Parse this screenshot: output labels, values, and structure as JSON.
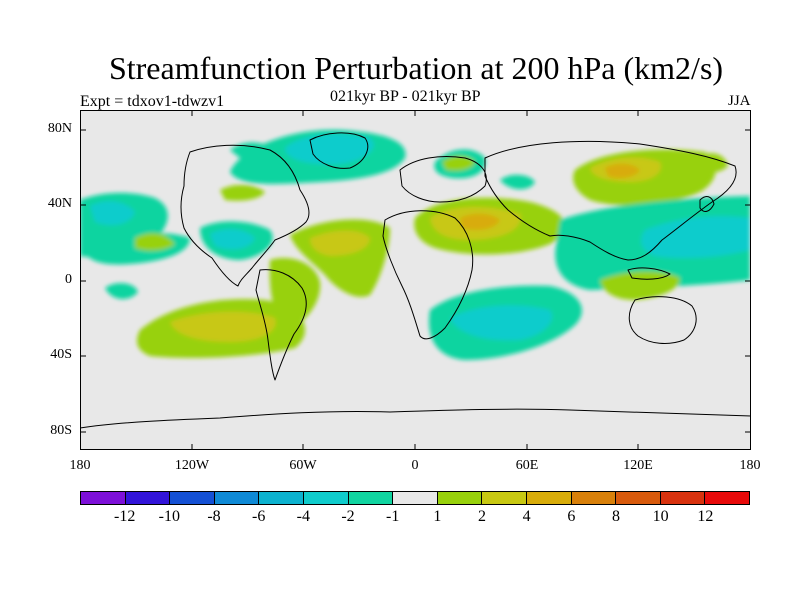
{
  "title": "Streamfunction Perturbation at 200 hPa (km2/s)",
  "subtitle_left": "Expt = tdxov1-tdwzv1",
  "subtitle_center": "021kyr BP - 021kyr BP",
  "subtitle_right": "JJA",
  "lat_labels": [
    "80N",
    "40N",
    "0",
    "40S",
    "80S"
  ],
  "lon_labels": [
    "180",
    "120W",
    "60W",
    "0",
    "60E",
    "120E",
    "180"
  ],
  "colorbar": {
    "labels": [
      "-12",
      "-10",
      "-8",
      "-6",
      "-4",
      "-2",
      "-1",
      "1",
      "2",
      "4",
      "6",
      "8",
      "10",
      "12"
    ],
    "colors": [
      "#7d10d8",
      "#3214d9",
      "#1450d4",
      "#0f8ad6",
      "#0cb2cf",
      "#0fcccc",
      "#10d4a0",
      "#e8e8e8",
      "#98d10c",
      "#c8c812",
      "#d8ac0a",
      "#d8800a",
      "#d85a0c",
      "#d8320e",
      "#e80a0a"
    ]
  },
  "colors": {
    "background": "#e8e8e8",
    "coast": "#000000"
  }
}
